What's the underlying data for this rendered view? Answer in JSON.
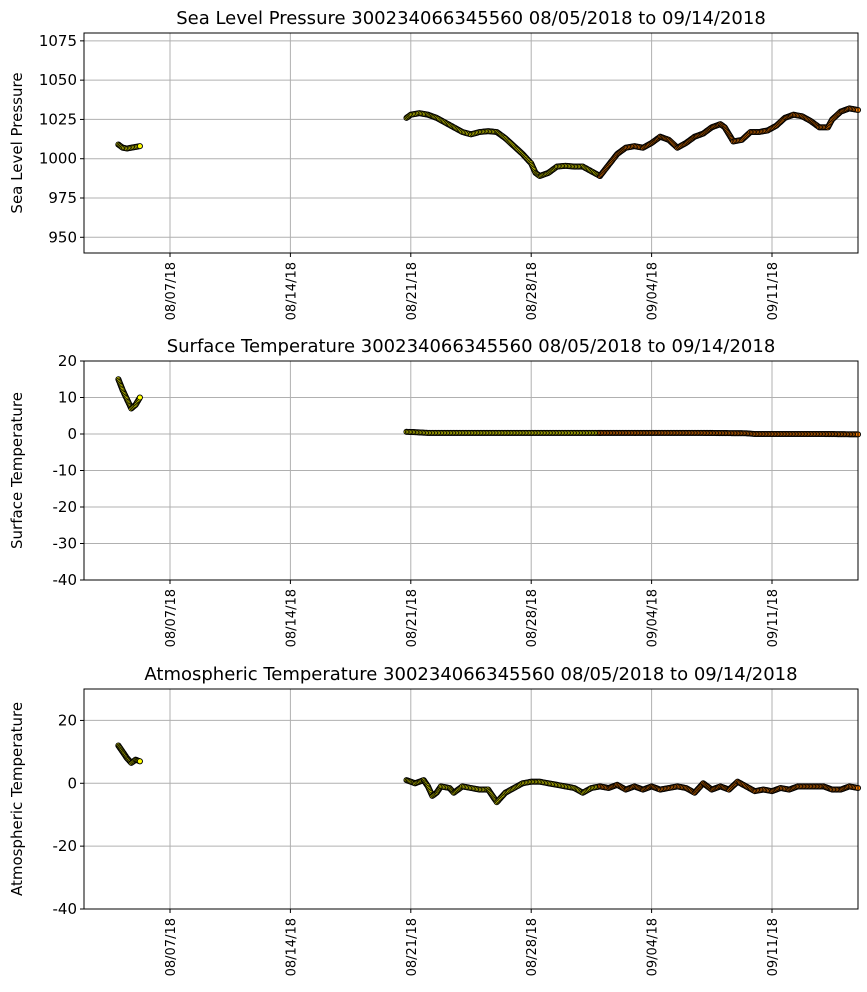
{
  "chart_data": [
    {
      "type": "scatter",
      "title": "Sea Level Pressure 300234066345560  08/05/2018 to 09/14/2018",
      "ylabel": "Sea Level Pressure",
      "xlabel": "",
      "xlim": [
        "2018-08-02",
        "2018-09-16"
      ],
      "ylim": [
        940,
        1080
      ],
      "yticks": [
        950,
        975,
        1000,
        1025,
        1050,
        1075
      ],
      "xticks": [
        "08/07/18",
        "08/14/18",
        "08/21/18",
        "08/28/18",
        "09/04/18",
        "09/11/18"
      ],
      "grid": true,
      "series": [
        {
          "color": "#ffff00",
          "points": [
            [
              "2018-08-04 00:00",
              1009
            ],
            [
              "2018-08-04 06:00",
              1007
            ],
            [
              "2018-08-04 12:00",
              1006.5
            ],
            [
              "2018-08-04 18:00",
              1007
            ],
            [
              "2018-08-05 00:00",
              1007.5
            ],
            [
              "2018-08-05 06:00",
              1008
            ]
          ]
        },
        {
          "color": "#ffff00",
          "points": [
            [
              "2018-08-20 18:00",
              1026
            ],
            [
              "2018-08-21 00:00",
              1028
            ],
            [
              "2018-08-21 12:00",
              1029
            ],
            [
              "2018-08-22 00:00",
              1028
            ],
            [
              "2018-08-22 12:00",
              1026
            ],
            [
              "2018-08-23 00:00",
              1023
            ],
            [
              "2018-08-23 12:00",
              1020
            ],
            [
              "2018-08-24 00:00",
              1017
            ],
            [
              "2018-08-24 12:00",
              1015.5
            ],
            [
              "2018-08-25 00:00",
              1017
            ],
            [
              "2018-08-25 12:00",
              1017.5
            ],
            [
              "2018-08-26 00:00",
              1017
            ],
            [
              "2018-08-26 12:00",
              1013
            ],
            [
              "2018-08-27 00:00",
              1008
            ],
            [
              "2018-08-27 12:00",
              1003
            ],
            [
              "2018-08-28 00:00",
              997
            ],
            [
              "2018-08-28 06:00",
              991
            ],
            [
              "2018-08-28 12:00",
              989
            ],
            [
              "2018-08-29 00:00",
              991
            ],
            [
              "2018-08-29 12:00",
              995
            ],
            [
              "2018-08-30 00:00",
              995.5
            ],
            [
              "2018-08-30 12:00",
              995
            ],
            [
              "2018-08-31 00:00",
              995
            ],
            [
              "2018-08-31 12:00",
              992
            ],
            [
              "2018-09-01 00:00",
              989
            ]
          ]
        },
        {
          "color": "#ff8000",
          "points": [
            [
              "2018-09-01 00:00",
              989
            ],
            [
              "2018-09-01 12:00",
              996
            ],
            [
              "2018-09-02 00:00",
              1003
            ],
            [
              "2018-09-02 12:00",
              1007
            ],
            [
              "2018-09-03 00:00",
              1008
            ],
            [
              "2018-09-03 12:00",
              1007
            ],
            [
              "2018-09-04 00:00",
              1010
            ],
            [
              "2018-09-04 12:00",
              1014
            ],
            [
              "2018-09-05 00:00",
              1012
            ],
            [
              "2018-09-05 12:00",
              1007
            ],
            [
              "2018-09-06 00:00",
              1010
            ],
            [
              "2018-09-06 12:00",
              1014
            ],
            [
              "2018-09-07 00:00",
              1016
            ],
            [
              "2018-09-07 12:00",
              1020
            ],
            [
              "2018-09-08 00:00",
              1022
            ],
            [
              "2018-09-08 06:00",
              1020
            ],
            [
              "2018-09-08 18:00",
              1011
            ],
            [
              "2018-09-09 06:00",
              1012
            ],
            [
              "2018-09-09 18:00",
              1017
            ],
            [
              "2018-09-10 06:00",
              1017
            ],
            [
              "2018-09-10 18:00",
              1018
            ],
            [
              "2018-09-11 06:00",
              1021
            ],
            [
              "2018-09-11 18:00",
              1026
            ],
            [
              "2018-09-12 06:00",
              1028
            ],
            [
              "2018-09-12 18:00",
              1027
            ],
            [
              "2018-09-13 06:00",
              1024
            ],
            [
              "2018-09-13 18:00",
              1020
            ],
            [
              "2018-09-14 06:00",
              1020
            ],
            [
              "2018-09-14 12:00",
              1025
            ],
            [
              "2018-09-15 00:00",
              1030
            ],
            [
              "2018-09-15 12:00",
              1032
            ],
            [
              "2018-09-16 00:00",
              1031
            ]
          ]
        }
      ]
    },
    {
      "type": "scatter",
      "title": "Surface Temperature 300234066345560  08/05/2018 to 09/14/2018",
      "ylabel": "Surface Temperature",
      "xlabel": "",
      "xlim": [
        "2018-08-02",
        "2018-09-16"
      ],
      "ylim": [
        -40,
        20
      ],
      "yticks": [
        -40,
        -30,
        -20,
        -10,
        0,
        10,
        20
      ],
      "xticks": [
        "08/07/18",
        "08/14/18",
        "08/21/18",
        "08/28/18",
        "09/04/18",
        "09/11/18"
      ],
      "grid": true,
      "series": [
        {
          "color": "#ffff00",
          "points": [
            [
              "2018-08-04 00:00",
              15
            ],
            [
              "2018-08-04 06:00",
              12
            ],
            [
              "2018-08-04 12:00",
              9.5
            ],
            [
              "2018-08-04 18:00",
              7
            ],
            [
              "2018-08-05 00:00",
              8
            ],
            [
              "2018-08-05 06:00",
              10
            ]
          ]
        },
        {
          "color": "#ffff00",
          "points": [
            [
              "2018-08-20 18:00",
              0.6
            ],
            [
              "2018-08-21 06:00",
              0.5
            ],
            [
              "2018-08-22 00:00",
              0.3
            ],
            [
              "2018-08-24 00:00",
              0.3
            ],
            [
              "2018-08-26 00:00",
              0.3
            ],
            [
              "2018-08-28 00:00",
              0.3
            ],
            [
              "2018-08-30 00:00",
              0.3
            ],
            [
              "2018-09-01 00:00",
              0.3
            ]
          ]
        },
        {
          "color": "#ff8000",
          "points": [
            [
              "2018-09-01 00:00",
              0.3
            ],
            [
              "2018-09-03 00:00",
              0.3
            ],
            [
              "2018-09-05 00:00",
              0.3
            ],
            [
              "2018-09-07 00:00",
              0.3
            ],
            [
              "2018-09-09 12:00",
              0.2
            ],
            [
              "2018-09-10 00:00",
              0
            ],
            [
              "2018-09-12 00:00",
              0
            ],
            [
              "2018-09-14 00:00",
              0
            ],
            [
              "2018-09-16 00:00",
              -0.1
            ]
          ]
        }
      ]
    },
    {
      "type": "scatter",
      "title": "Atmospheric Temperature 300234066345560  08/05/2018 to 09/14/2018",
      "ylabel": "Atmospheric Temperature",
      "xlabel": "",
      "xlim": [
        "2018-08-02",
        "2018-09-16"
      ],
      "ylim": [
        -40,
        30
      ],
      "yticks": [
        -40,
        -20,
        0,
        20
      ],
      "xticks": [
        "08/07/18",
        "08/14/18",
        "08/21/18",
        "08/28/18",
        "09/04/18",
        "09/11/18"
      ],
      "grid": true,
      "series": [
        {
          "color": "#ffff00",
          "points": [
            [
              "2018-08-04 00:00",
              12
            ],
            [
              "2018-08-04 06:00",
              10
            ],
            [
              "2018-08-04 12:00",
              8
            ],
            [
              "2018-08-04 18:00",
              6.5
            ],
            [
              "2018-08-05 00:00",
              7.5
            ],
            [
              "2018-08-05 06:00",
              7
            ]
          ]
        },
        {
          "color": "#ffff00",
          "points": [
            [
              "2018-08-20 18:00",
              1
            ],
            [
              "2018-08-21 06:00",
              0
            ],
            [
              "2018-08-21 18:00",
              1
            ],
            [
              "2018-08-22 00:00",
              -1
            ],
            [
              "2018-08-22 06:00",
              -4
            ],
            [
              "2018-08-22 12:00",
              -3
            ],
            [
              "2018-08-22 18:00",
              -1
            ],
            [
              "2018-08-23 06:00",
              -1.5
            ],
            [
              "2018-08-23 12:00",
              -3
            ],
            [
              "2018-08-24 00:00",
              -1
            ],
            [
              "2018-08-24 12:00",
              -1.5
            ],
            [
              "2018-08-25 00:00",
              -2
            ],
            [
              "2018-08-25 12:00",
              -2
            ],
            [
              "2018-08-26 00:00",
              -6
            ],
            [
              "2018-08-26 12:00",
              -3
            ],
            [
              "2018-08-27 00:00",
              -1.5
            ],
            [
              "2018-08-27 12:00",
              0
            ],
            [
              "2018-08-28 00:00",
              0.5
            ],
            [
              "2018-08-28 12:00",
              0.5
            ],
            [
              "2018-08-29 00:00",
              0
            ],
            [
              "2018-08-29 12:00",
              -0.5
            ],
            [
              "2018-08-30 00:00",
              -1
            ],
            [
              "2018-08-30 12:00",
              -1.5
            ],
            [
              "2018-08-31 00:00",
              -3
            ],
            [
              "2018-08-31 12:00",
              -1.5
            ],
            [
              "2018-09-01 00:00",
              -1
            ]
          ]
        },
        {
          "color": "#ff8000",
          "points": [
            [
              "2018-09-01 00:00",
              -1
            ],
            [
              "2018-09-01 12:00",
              -1.5
            ],
            [
              "2018-09-02 00:00",
              -0.5
            ],
            [
              "2018-09-02 12:00",
              -2
            ],
            [
              "2018-09-03 00:00",
              -1
            ],
            [
              "2018-09-03 12:00",
              -2
            ],
            [
              "2018-09-04 00:00",
              -1
            ],
            [
              "2018-09-04 12:00",
              -2
            ],
            [
              "2018-09-05 00:00",
              -1.5
            ],
            [
              "2018-09-05 12:00",
              -1
            ],
            [
              "2018-09-06 00:00",
              -1.5
            ],
            [
              "2018-09-06 12:00",
              -3
            ],
            [
              "2018-09-07 00:00",
              0
            ],
            [
              "2018-09-07 12:00",
              -2
            ],
            [
              "2018-09-08 00:00",
              -1
            ],
            [
              "2018-09-08 12:00",
              -2
            ],
            [
              "2018-09-09 00:00",
              0.5
            ],
            [
              "2018-09-09 12:00",
              -1
            ],
            [
              "2018-09-10 00:00",
              -2.5
            ],
            [
              "2018-09-10 12:00",
              -2
            ],
            [
              "2018-09-11 00:00",
              -2.5
            ],
            [
              "2018-09-11 12:00",
              -1.5
            ],
            [
              "2018-09-12 00:00",
              -2
            ],
            [
              "2018-09-12 12:00",
              -1
            ],
            [
              "2018-09-13 00:00",
              -1
            ],
            [
              "2018-09-13 12:00",
              -1
            ],
            [
              "2018-09-14 00:00",
              -1
            ],
            [
              "2018-09-14 12:00",
              -2
            ],
            [
              "2018-09-15 00:00",
              -2
            ],
            [
              "2018-09-15 12:00",
              -1
            ],
            [
              "2018-09-16 00:00",
              -1.5
            ]
          ]
        }
      ]
    }
  ]
}
